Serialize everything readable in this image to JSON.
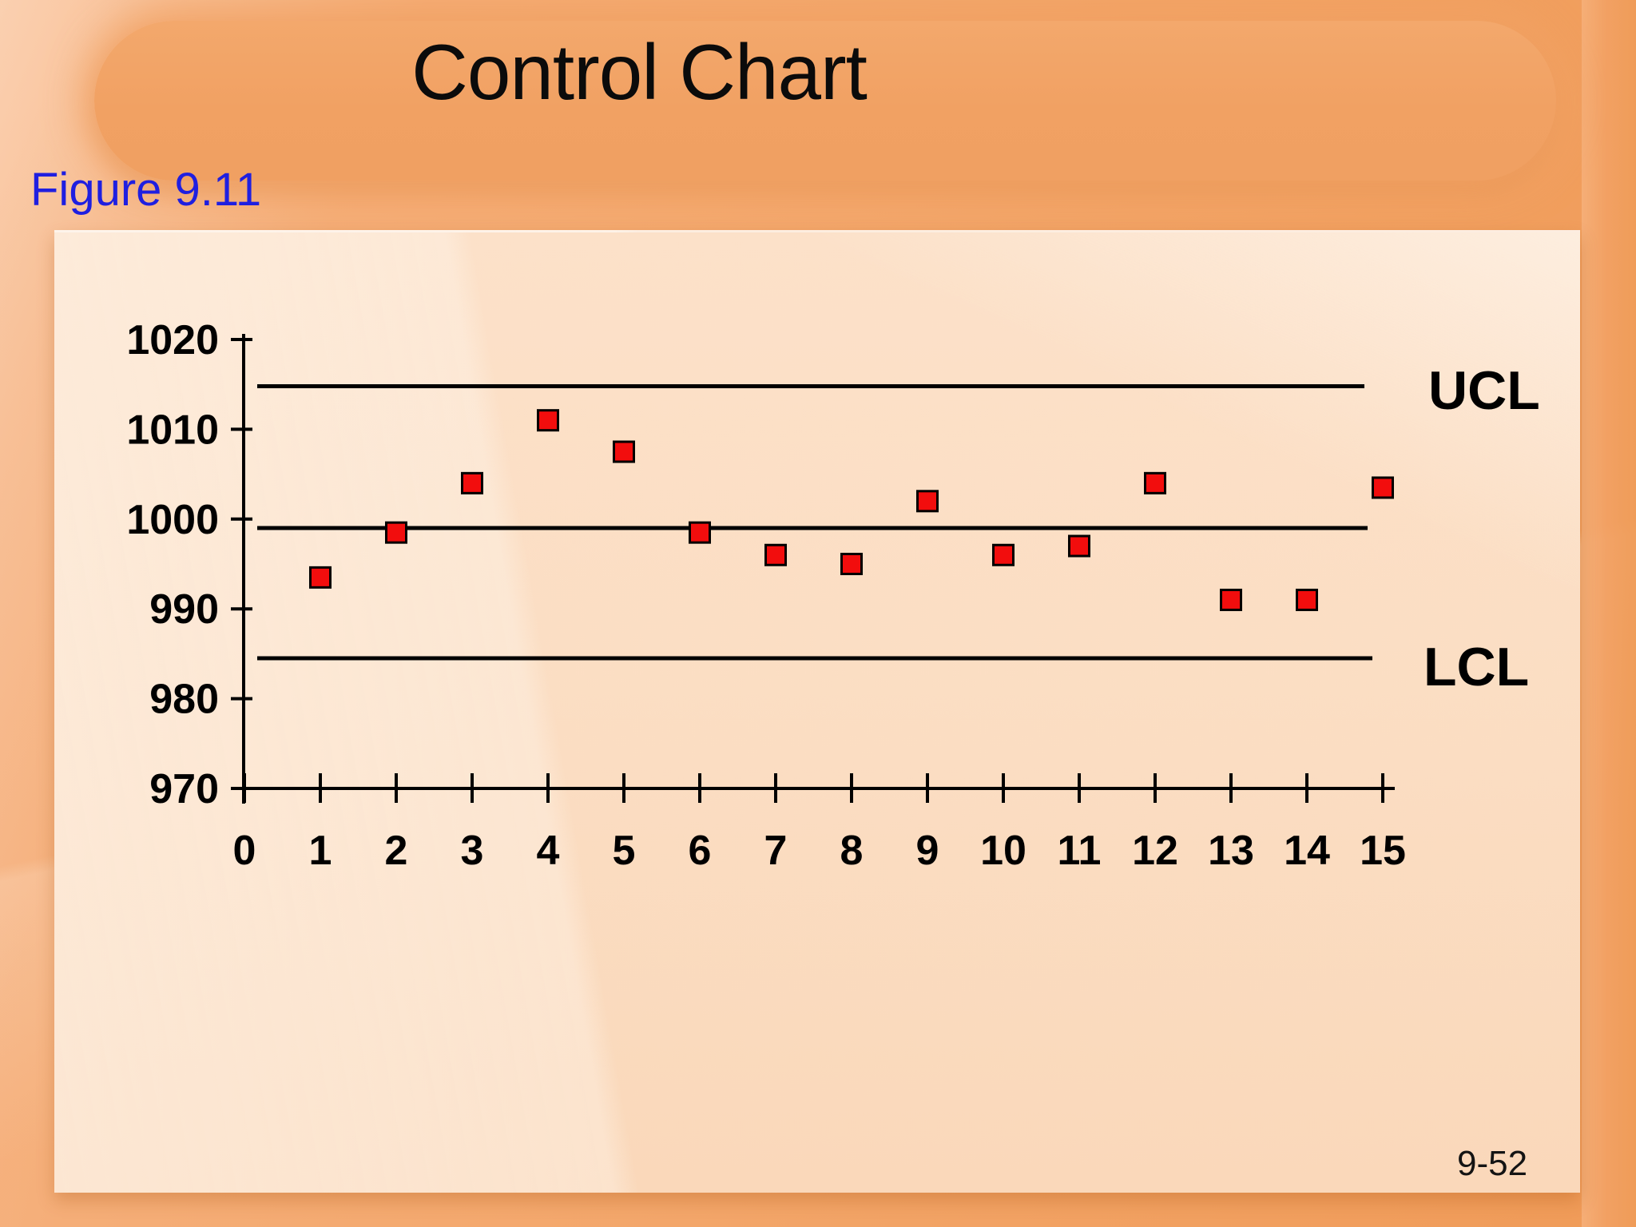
{
  "slide": {
    "title": "Control Chart",
    "figure_label": "Figure 9.11",
    "page_number": "9-52"
  },
  "colors": {
    "background_orange": "#f2a365",
    "banner_orange": "#f1a163",
    "panel_peach": "#fbddc2",
    "figure_label_blue": "#1f1fe0",
    "marker_red": "#f20d0d",
    "marker_stroke": "#000000",
    "line_black": "#000000",
    "text_black": "#000000"
  },
  "chart_data": {
    "type": "scatter",
    "title": "Control Chart",
    "xlabel": "",
    "ylabel": "",
    "x": [
      1,
      2,
      3,
      4,
      5,
      6,
      7,
      8,
      9,
      10,
      11,
      12,
      13,
      14,
      15
    ],
    "values": [
      993.5,
      998.5,
      1004,
      1011,
      1007.5,
      998.5,
      996,
      995,
      1002,
      996,
      997,
      1004,
      991,
      991,
      1003.5
    ],
    "center_line": 999,
    "ucl": 1014.8,
    "lcl": 984.5,
    "ucl_label": "UCL",
    "lcl_label": "LCL",
    "xlim": [
      0,
      15.2
    ],
    "ylim": [
      970,
      1020
    ],
    "x_ticks": [
      0,
      1,
      2,
      3,
      4,
      5,
      6,
      7,
      8,
      9,
      10,
      11,
      12,
      13,
      14,
      15
    ],
    "y_ticks": [
      970,
      980,
      990,
      1000,
      1010,
      1020
    ],
    "marker": "red-square",
    "grid": false,
    "legend_position": "none"
  }
}
